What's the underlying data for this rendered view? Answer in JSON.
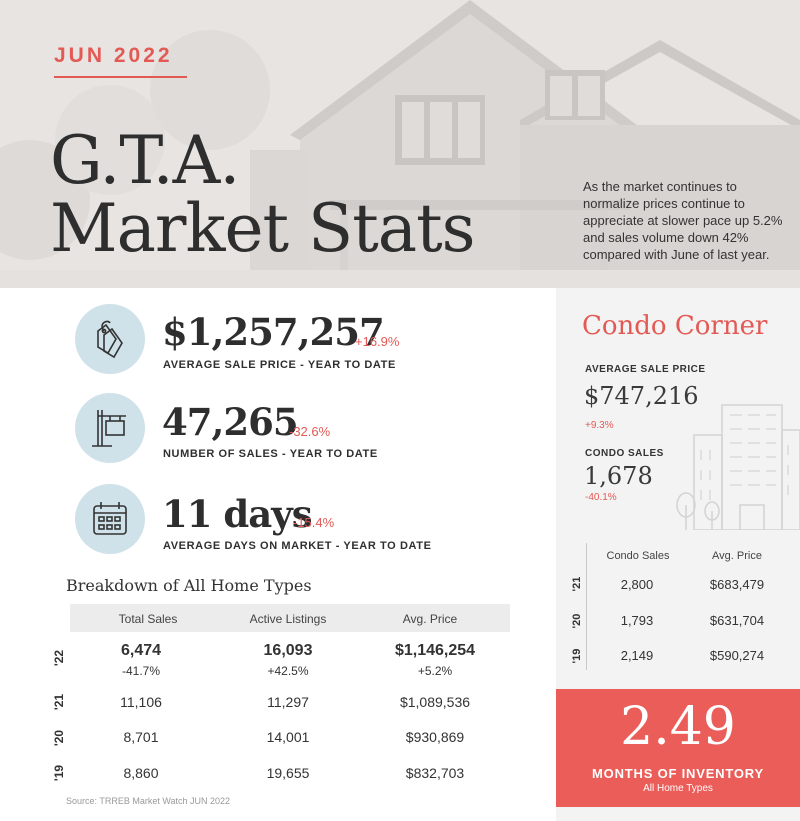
{
  "header": {
    "issue": "JUN 2022",
    "title_line1": "G.T.A.",
    "title_line2": "Market Stats",
    "intro": "As the market continues to normalize prices continue to appreciate at slower pace up 5.2% and sales volume down 42% compared with June of last year."
  },
  "stats": [
    {
      "icon": "price-tags-icon",
      "value": "$1,257,257",
      "change": "+16.9%",
      "label": "AVERAGE SALE PRICE - YEAR TO DATE"
    },
    {
      "icon": "for-sale-sign-icon",
      "value": "47,265",
      "change": "-32.6%",
      "label": "NUMBER OF SALES - YEAR TO DATE"
    },
    {
      "icon": "calendar-icon",
      "value": "11 days",
      "change": "-15.4%",
      "label": "AVERAGE DAYS ON MARKET - YEAR TO DATE"
    }
  ],
  "breakdown": {
    "title": "Breakdown of All Home Types",
    "columns": [
      "Total Sales",
      "Active Listings",
      "Avg. Price"
    ],
    "rows": [
      {
        "year": "'22",
        "values": [
          "6,474",
          "16,093",
          "$1,146,254"
        ],
        "changes": [
          "-41.7%",
          "+42.5%",
          "+5.2%"
        ]
      },
      {
        "year": "'21",
        "values": [
          "11,106",
          "11,297",
          "$1,089,536"
        ]
      },
      {
        "year": "'20",
        "values": [
          "8,701",
          "14,001",
          "$930,869"
        ]
      },
      {
        "year": "'19",
        "values": [
          "8,860",
          "19,655",
          "$832,703"
        ]
      }
    ],
    "source": "Source: TRREB Market Watch JUN 2022"
  },
  "condo": {
    "title": "Condo Corner",
    "price_label": "AVERAGE SALE PRICE",
    "price_value": "$747,216",
    "price_change": "+9.3%",
    "sales_label": "CONDO SALES",
    "sales_value": "1,678",
    "sales_change": "-40.1%",
    "illustration": "condo-buildings-icon",
    "columns": [
      "Condo Sales",
      "Avg. Price"
    ],
    "rows": [
      {
        "year": "'21",
        "values": [
          "2,800",
          "$683,479"
        ]
      },
      {
        "year": "'20",
        "values": [
          "1,793",
          "$631,704"
        ]
      },
      {
        "year": "'19",
        "values": [
          "2,149",
          "$590,274"
        ]
      }
    ]
  },
  "moi": {
    "value": "2.49",
    "label": "MONTHS OF INVENTORY",
    "sublabel": "All Home Types"
  },
  "colors": {
    "accent": "#e35a55",
    "accent_box": "#ea5d58",
    "icon_circle": "#cfe2ea",
    "panel": "#f3f3f3"
  }
}
